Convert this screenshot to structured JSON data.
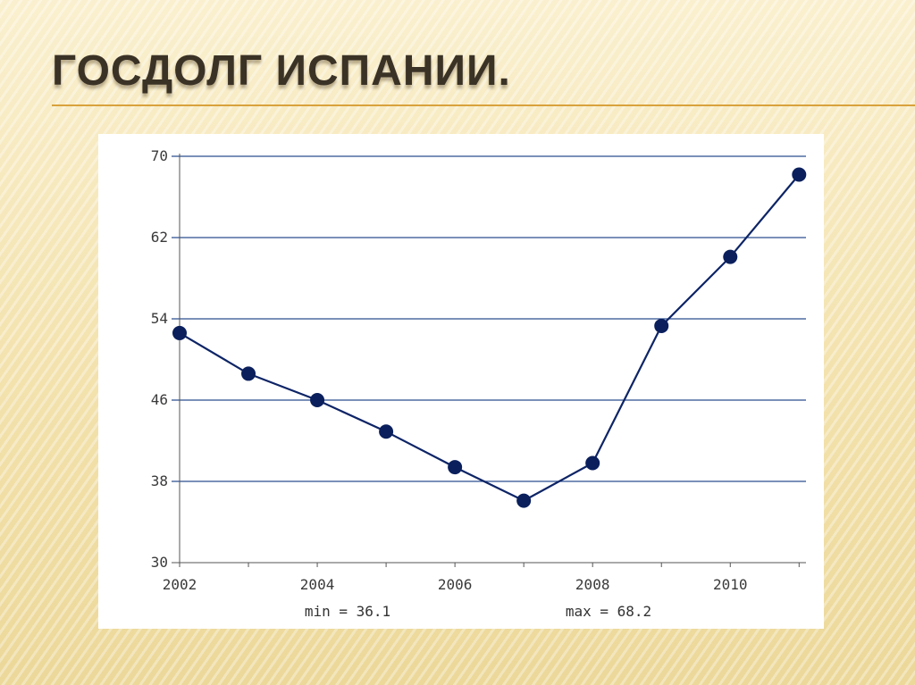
{
  "slide": {
    "title": "ГОСДОЛГ  ИСПАНИИ."
  },
  "colors": {
    "line": "#0d2466",
    "marker": "#0a1f5c",
    "grid": "#2a4d8f",
    "title_rule": "#d9a23c"
  },
  "chart_data": {
    "type": "line",
    "title": "",
    "xlabel": "",
    "ylabel": "",
    "x": [
      2002,
      2003,
      2004,
      2005,
      2006,
      2007,
      2008,
      2009,
      2010,
      2011
    ],
    "series": [
      {
        "values": [
          52.6,
          48.6,
          46.0,
          42.9,
          39.4,
          36.1,
          39.8,
          53.3,
          60.1,
          68.2
        ]
      }
    ],
    "xlim": [
      2002,
      2011.1
    ],
    "ylim": [
      30,
      70
    ],
    "x_ticks": [
      2002,
      2004,
      2006,
      2008,
      2010
    ],
    "x_tick_labels": [
      "2002",
      "2004",
      "2006",
      "2008",
      "2010"
    ],
    "y_ticks": [
      30,
      38,
      46,
      54,
      62,
      70
    ],
    "y_tick_labels": [
      "30",
      "38",
      "46",
      "54",
      "62",
      "70"
    ],
    "grid": "horizontal",
    "legend": "none",
    "stats": {
      "min_text": "min = 36.1",
      "max_text": "max = 68.2"
    }
  }
}
